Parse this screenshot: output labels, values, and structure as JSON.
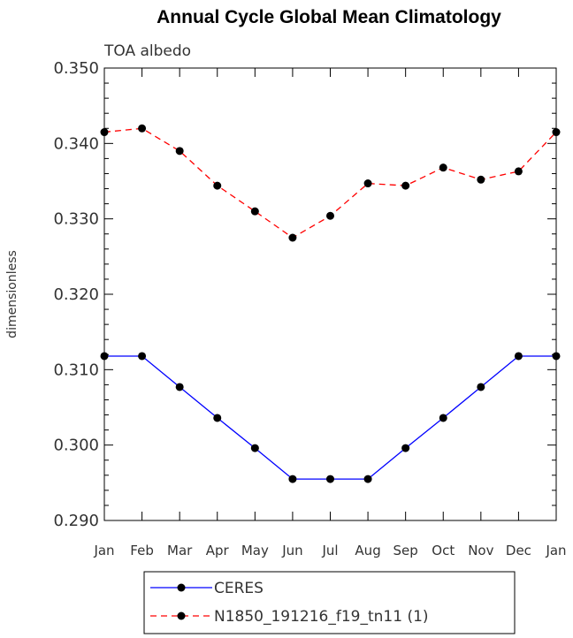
{
  "chart_data": {
    "type": "line",
    "title": "Annual Cycle Global Mean Climatology",
    "subtitle": "TOA albedo",
    "xlabel": "",
    "ylabel": "dimensionless",
    "categories": [
      "Jan",
      "Feb",
      "Mar",
      "Apr",
      "May",
      "Jun",
      "Jul",
      "Aug",
      "Sep",
      "Oct",
      "Nov",
      "Dec",
      "Jan"
    ],
    "yticks": [
      "0.290",
      "0.300",
      "0.310",
      "0.320",
      "0.330",
      "0.340",
      "0.350"
    ],
    "ylim": [
      0.29,
      0.35
    ],
    "grid": false,
    "legend_position": "bottom",
    "series": [
      {
        "name": "CERES",
        "color": "#0000ff",
        "dash": "solid",
        "values": [
          0.3118,
          0.3118,
          0.3077,
          0.3036,
          0.2996,
          0.2955,
          0.2955,
          0.2955,
          0.2996,
          0.3036,
          0.3077,
          0.3118,
          0.3118
        ]
      },
      {
        "name": "N1850_191216_f19_tn11 (1)",
        "color": "#ff0000",
        "dash": "dashed",
        "values": [
          0.3415,
          0.342,
          0.339,
          0.3344,
          0.331,
          0.3275,
          0.3304,
          0.3347,
          0.3344,
          0.3368,
          0.3352,
          0.3363,
          0.3415
        ]
      }
    ]
  }
}
